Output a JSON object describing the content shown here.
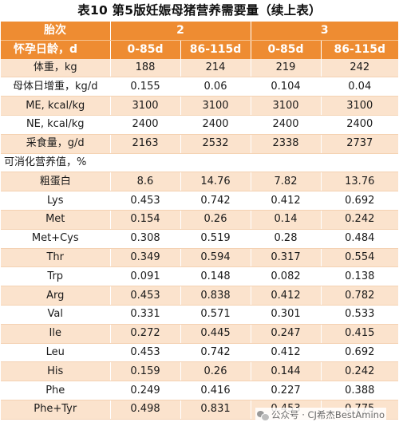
{
  "title": "表10  第5版妊娠母猪营养需要量（续上表）",
  "header": {
    "parity_label": "胎次",
    "parity_2": "2",
    "parity_3": "3",
    "gestation_label": "怀孕日龄，d",
    "periods": [
      "0-85d",
      "86-115d",
      "0-85d",
      "86-115d"
    ]
  },
  "rows": [
    {
      "label": "体重，kg",
      "values": [
        "188",
        "214",
        "219",
        "242"
      ]
    },
    {
      "label": "母体日增重，kg/d",
      "values": [
        "0.155",
        "0.06",
        "0.104",
        "0.04"
      ]
    },
    {
      "label": "ME, kcal/kg",
      "values": [
        "3100",
        "3100",
        "3100",
        "3100"
      ]
    },
    {
      "label": "NE, kcal/kg",
      "values": [
        "2400",
        "2400",
        "2400",
        "2400"
      ]
    },
    {
      "label": "采食量，g/d",
      "values": [
        "2163",
        "2532",
        "2338",
        "2737"
      ]
    },
    {
      "label": "可消化营养值，%",
      "values": [
        "",
        "",
        "",
        ""
      ]
    },
    {
      "label": "粗蛋白",
      "values": [
        "8.6",
        "14.76",
        "7.82",
        "13.76"
      ]
    },
    {
      "label": "Lys",
      "values": [
        "0.453",
        "0.742",
        "0.412",
        "0.692"
      ]
    },
    {
      "label": "Met",
      "values": [
        "0.154",
        "0.26",
        "0.14",
        "0.242"
      ]
    },
    {
      "label": "Met+Cys",
      "values": [
        "0.308",
        "0.519",
        "0.28",
        "0.484"
      ]
    },
    {
      "label": "Thr",
      "values": [
        "0.349",
        "0.594",
        "0.317",
        "0.554"
      ]
    },
    {
      "label": "Trp",
      "values": [
        "0.091",
        "0.148",
        "0.082",
        "0.138"
      ]
    },
    {
      "label": "Arg",
      "values": [
        "0.453",
        "0.838",
        "0.412",
        "0.782"
      ]
    },
    {
      "label": "Val",
      "values": [
        "0.331",
        "0.571",
        "0.301",
        "0.533"
      ]
    },
    {
      "label": "Ile",
      "values": [
        "0.272",
        "0.445",
        "0.247",
        "0.415"
      ]
    },
    {
      "label": "Leu",
      "values": [
        "0.453",
        "0.742",
        "0.412",
        "0.692"
      ]
    },
    {
      "label": "His",
      "values": [
        "0.159",
        "0.26",
        "0.144",
        "0.242"
      ]
    },
    {
      "label": "Phe",
      "values": [
        "0.249",
        "0.416",
        "0.227",
        "0.388"
      ]
    },
    {
      "label": "Phe+Tyr",
      "values": [
        "0.498",
        "0.831",
        "0.453",
        "0.775"
      ]
    }
  ],
  "watermark": {
    "icon": "wechat-icon",
    "text": "公众号 · CJ希杰BestAmino"
  }
}
